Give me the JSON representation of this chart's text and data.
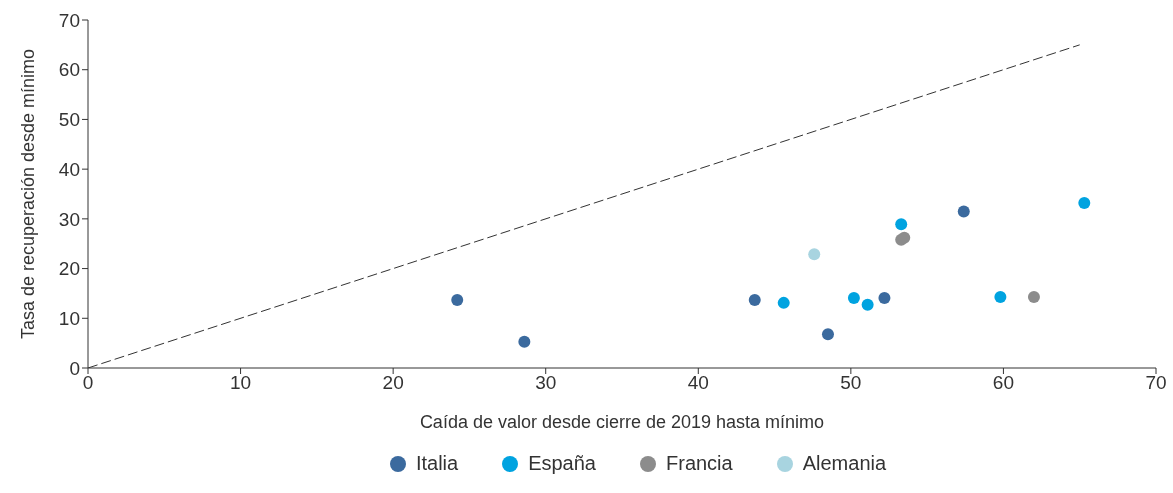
{
  "chart_data": {
    "type": "scatter",
    "xlabel": "Caída de valor desde cierre de 2019 hasta mínimo",
    "ylabel": "Tasa de recuperación desde mínimo",
    "xlim": [
      0,
      70
    ],
    "xticks": [
      0,
      10,
      20,
      30,
      40,
      50,
      60,
      70
    ],
    "ylim": [
      0,
      70
    ],
    "yticks": [
      0,
      10,
      20,
      30,
      40,
      50,
      60,
      70
    ],
    "legend": "bottom",
    "marker": "circle",
    "series": [
      {
        "name": "Italia",
        "color": "#3b6a9e",
        "x": [
          24.2,
          28.6,
          43.7,
          48.5,
          52.2,
          57.4
        ],
        "values": [
          13.7,
          5.3,
          13.7,
          6.8,
          14.1,
          31.5
        ]
      },
      {
        "name": "España",
        "color": "#00a3e0",
        "x": [
          45.6,
          50.2,
          51.1,
          53.3,
          59.8,
          65.3
        ],
        "values": [
          13.1,
          14.1,
          12.7,
          28.9,
          14.3,
          33.2
        ]
      },
      {
        "name": "Francia",
        "color": "#8c8c8c",
        "x": [
          53.3,
          53.5,
          62.0
        ],
        "values": [
          25.8,
          26.2,
          14.3
        ]
      },
      {
        "name": "Alemania",
        "color": "#a8d4e0",
        "x": [
          47.6
        ],
        "values": [
          22.9
        ]
      },
      {
        "type": "line",
        "color": "#333333",
        "line_style": "dashed",
        "marker": "none",
        "x": [
          0,
          65
        ],
        "values": [
          0,
          65
        ]
      }
    ]
  }
}
